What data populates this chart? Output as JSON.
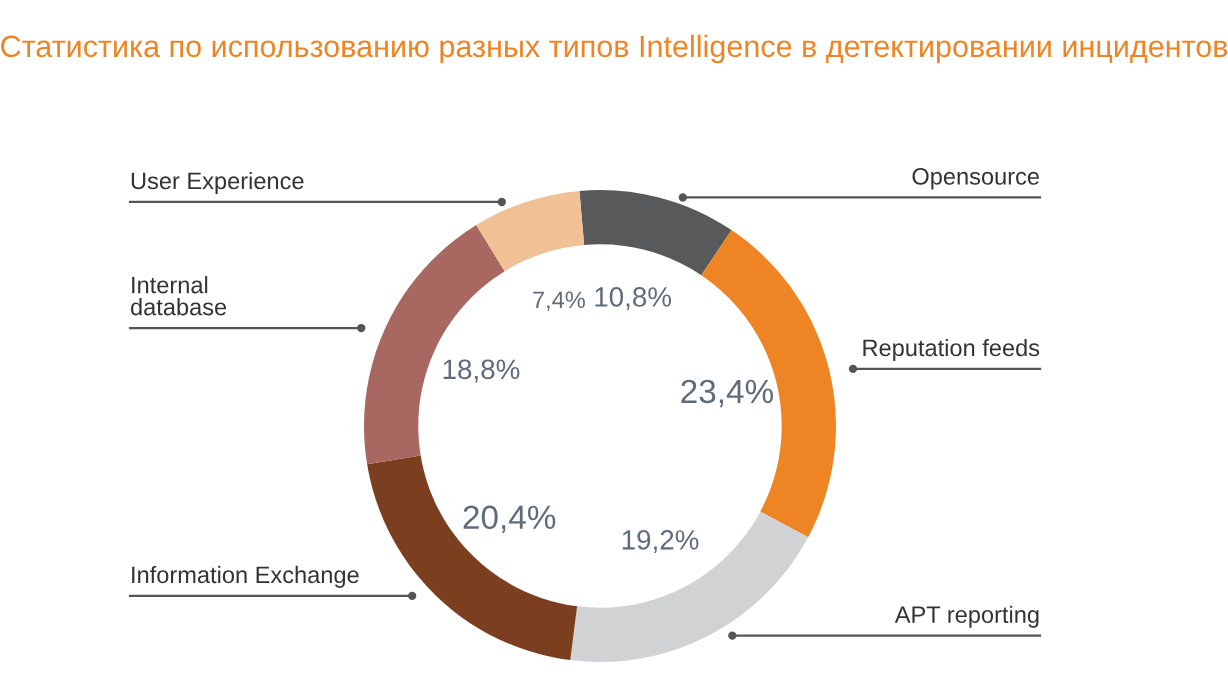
{
  "chart_data": {
    "type": "donut",
    "title": "Статистика по использованию разных типов Intelligence в детектировании инцидентов",
    "categories": [
      "Opensource",
      "Reputation feeds",
      "APT reporting",
      "Information Exchange",
      "Internal\ndatabase",
      "User Experience"
    ],
    "values": [
      10.8,
      23.4,
      19.2,
      20.4,
      18.8,
      7.4
    ],
    "value_labels": [
      "10,8%",
      "23,4%",
      "19,2%",
      "20,4%",
      "18,8%",
      "7,4%"
    ],
    "colors": [
      "#58595b",
      "#ee8423",
      "#d1d2d4",
      "#7b3f1f",
      "#a86861",
      "#f0c195"
    ],
    "legend": false
  }
}
